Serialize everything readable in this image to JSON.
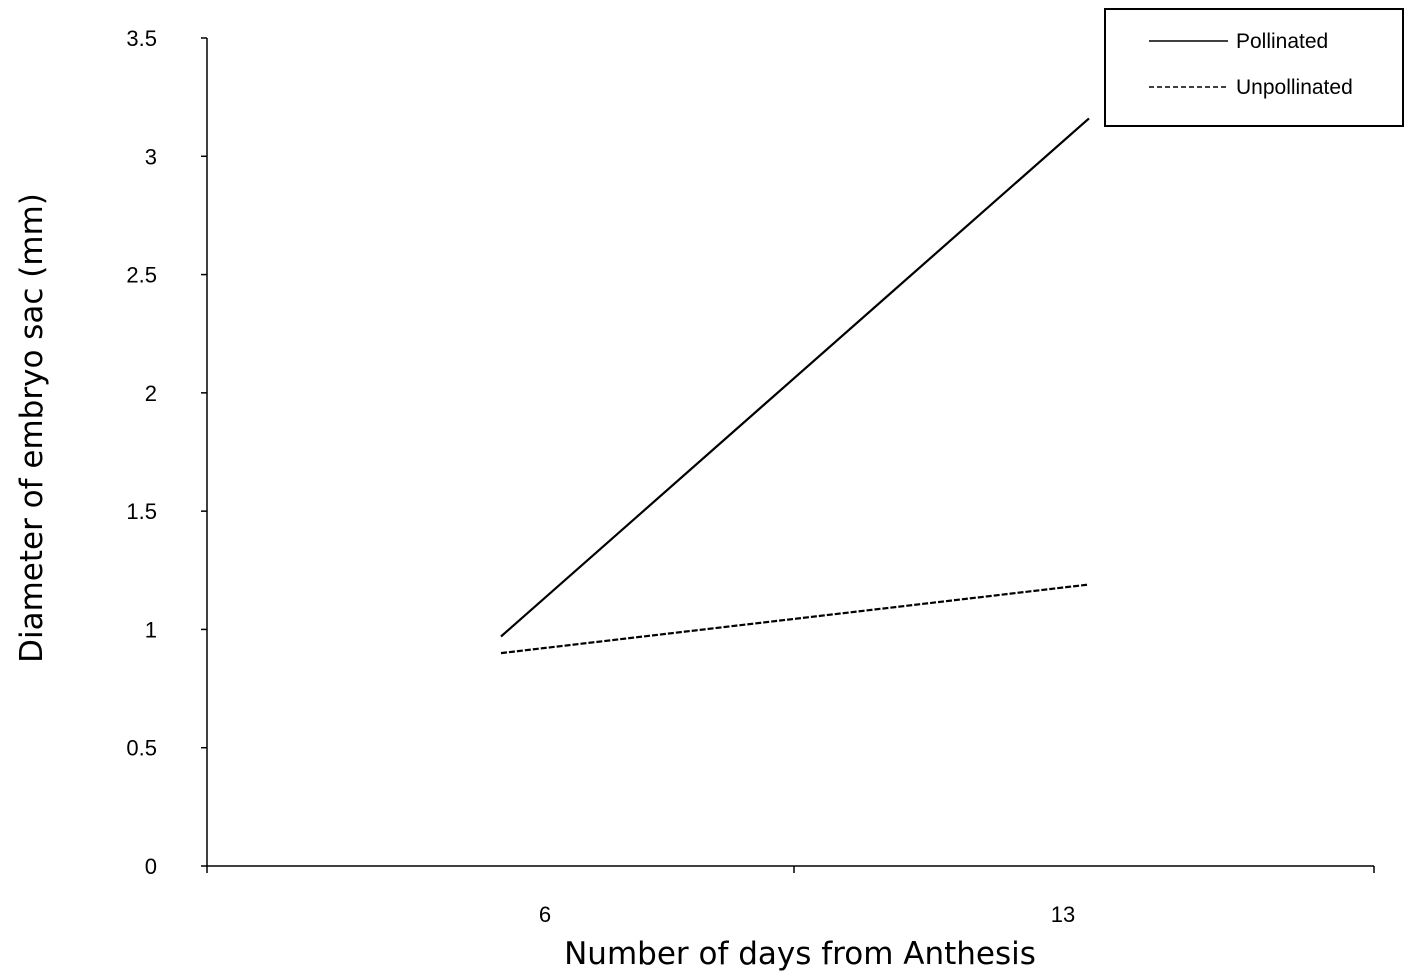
{
  "chart_data": {
    "type": "line",
    "title": "",
    "xlabel": "Number of days from Anthesis",
    "ylabel": "Diameter of embryo sac (mm)",
    "categories": [
      "6",
      "13"
    ],
    "ylim": [
      0,
      3.5
    ],
    "yticks": [
      "0",
      "0.5",
      "1",
      "1.5",
      "2",
      "2.5",
      "3",
      "3.5"
    ],
    "grid": false,
    "legend_position": "top-right",
    "series": [
      {
        "name": "Pollinated",
        "values": [
          0.97,
          3.16
        ],
        "style": "solid",
        "color": "#000000"
      },
      {
        "name": "Unpollinated",
        "values": [
          0.9,
          1.19
        ],
        "style": "dashed",
        "color": "#000000"
      }
    ]
  }
}
